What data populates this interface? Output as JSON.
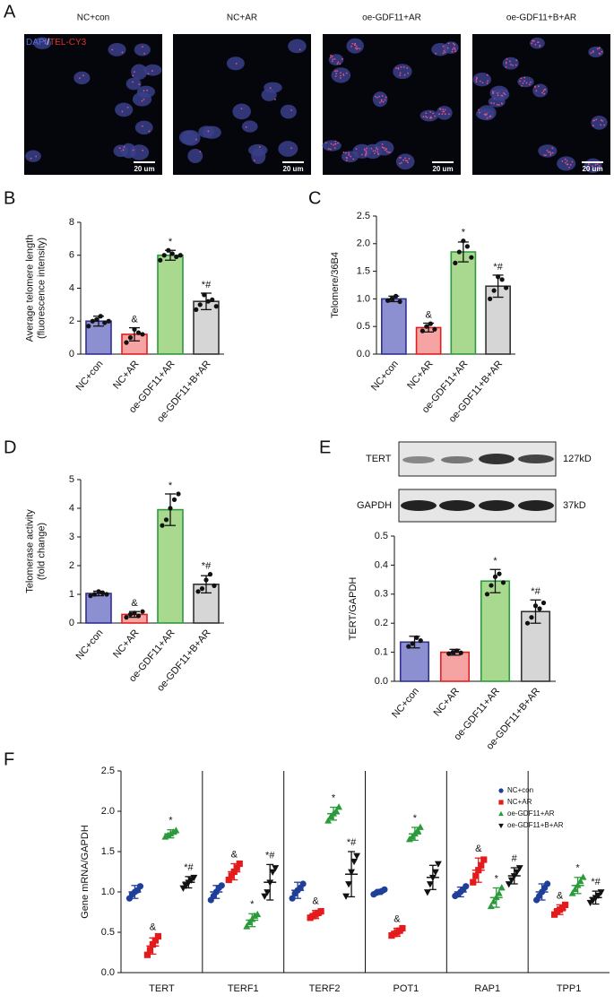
{
  "panel_a": {
    "label": "A",
    "titles": [
      "NC+con",
      "NC+AR",
      "oe-GDF11+AR",
      "oe-GDF11+B+AR"
    ],
    "channels": [
      "DAPI",
      "/",
      "TEL-CY3"
    ],
    "scale_bar": "20 um"
  },
  "blot": {
    "rows": [
      "TERT",
      "GAPDH"
    ],
    "sizes": [
      "127kD",
      "37kD"
    ]
  },
  "chart_data": [
    {
      "type": "bar",
      "panel": "B",
      "y_label": [
        "Average telomere length",
        "(fluorescence intensity)"
      ],
      "categories": [
        "NC+con",
        "NC+AR",
        "oe-GDF11+AR",
        "oe-GDF11+B+AR"
      ],
      "values": [
        2.0,
        1.2,
        6.0,
        3.2
      ],
      "errors": [
        0.3,
        0.4,
        0.3,
        0.5
      ],
      "points": [
        [
          1.7,
          2.0,
          2.1,
          2.3,
          1.9,
          2.0
        ],
        [
          0.7,
          1.0,
          1.5,
          1.3,
          1.2
        ],
        [
          5.7,
          6.0,
          6.3,
          6.1,
          5.9,
          6.0
        ],
        [
          2.7,
          3.0,
          3.6,
          3.2,
          3.3,
          2.9
        ]
      ],
      "annotations": [
        null,
        "&",
        "*",
        "*#"
      ],
      "colors": [
        "#8c8fd0",
        "#f5a3a3",
        "#a9d98f",
        "#d6d6d6"
      ],
      "edge_colors": [
        "#2e3192",
        "#e02020",
        "#2e9a40",
        "#333333"
      ],
      "point_color": "#111111",
      "ylim": [
        0,
        8
      ],
      "yticks": [
        0,
        2,
        4,
        6,
        8
      ]
    },
    {
      "type": "bar",
      "panel": "C",
      "y_label": [
        "Telomere/36B4"
      ],
      "categories": [
        "NC+con",
        "NC+AR",
        "oe-GDF11+AR",
        "oe-GDF11+B+AR"
      ],
      "values": [
        1.0,
        0.48,
        1.85,
        1.23
      ],
      "errors": [
        0.05,
        0.08,
        0.18,
        0.2
      ],
      "points": [
        [
          0.97,
          1.0,
          1.05,
          0.95
        ],
        [
          0.42,
          0.5,
          0.55,
          0.45
        ],
        [
          1.65,
          1.85,
          2.05,
          1.95,
          1.75
        ],
        [
          1.0,
          1.15,
          1.4,
          1.35,
          1.2
        ]
      ],
      "annotations": [
        null,
        "&",
        "*",
        "*#"
      ],
      "colors": [
        "#8c8fd0",
        "#f5a3a3",
        "#a9d98f",
        "#d6d6d6"
      ],
      "edge_colors": [
        "#2e3192",
        "#e02020",
        "#2e9a40",
        "#333333"
      ],
      "point_color": "#111111",
      "ylim": [
        0,
        2.5
      ],
      "yticks": [
        {
          "value": 0,
          "label": "0.0"
        },
        0.5,
        {
          "value": 1,
          "label": "1.0"
        },
        1.5,
        {
          "value": 2,
          "label": "2.0"
        },
        2.5
      ]
    },
    {
      "type": "bar",
      "panel": "D",
      "y_label": [
        "Telomerase activity",
        "(fold change)"
      ],
      "categories": [
        "NC+con",
        "NC+AR",
        "oe-GDF11+AR",
        "oe-GDF11+B+AR"
      ],
      "values": [
        1.03,
        0.3,
        3.95,
        1.35
      ],
      "errors": [
        0.08,
        0.1,
        0.55,
        0.3
      ],
      "points": [
        [
          0.95,
          1.0,
          1.1,
          1.05,
          1.0
        ],
        [
          0.2,
          0.3,
          0.35,
          0.25,
          0.4
        ],
        [
          3.4,
          3.6,
          4.0,
          4.3,
          4.5
        ],
        [
          1.1,
          1.2,
          1.5,
          1.7,
          1.3
        ]
      ],
      "annotations": [
        null,
        "&",
        "*",
        "*#"
      ],
      "colors": [
        "#8c8fd0",
        "#f5a3a3",
        "#a9d98f",
        "#d6d6d6"
      ],
      "edge_colors": [
        "#2e3192",
        "#e02020",
        "#2e9a40",
        "#333333"
      ],
      "point_color": "#111111",
      "ylim": [
        0,
        5
      ],
      "yticks": [
        0,
        1,
        2,
        3,
        4,
        5
      ]
    },
    {
      "type": "bar",
      "panel": "E",
      "y_label": [
        "TERT/GAPDH"
      ],
      "categories": [
        "NC+con",
        "NC+AR",
        "oe-GDF11+AR",
        "oe-GDF11+B+AR"
      ],
      "values": [
        0.135,
        0.1,
        0.345,
        0.24
      ],
      "errors": [
        0.02,
        0.01,
        0.04,
        0.04
      ],
      "points": [
        [
          0.12,
          0.13,
          0.15,
          0.14
        ],
        [
          0.095,
          0.1,
          0.105,
          0.098
        ],
        [
          0.3,
          0.33,
          0.36,
          0.37,
          0.34
        ],
        [
          0.2,
          0.22,
          0.26,
          0.25,
          0.27
        ]
      ],
      "annotations": [
        null,
        null,
        "*",
        "*#"
      ],
      "colors": [
        "#8c8fd0",
        "#f5a3a3",
        "#a9d98f",
        "#d6d6d6"
      ],
      "edge_colors": [
        "#2e3192",
        "#e02020",
        "#2e9a40",
        "#333333"
      ],
      "point_color": "#111111",
      "ylim": [
        0,
        0.5
      ],
      "yticks": [
        {
          "value": 0,
          "label": "0.0"
        },
        0.1,
        0.2,
        0.3,
        0.4,
        0.5
      ]
    },
    {
      "type": "dotplot",
      "panel": "F",
      "y_label": [
        "Gene mRNA/GAPDH"
      ],
      "categories": [
        "TERT",
        "TERF1",
        "TERF2",
        "POT1",
        "RAP1",
        "TPP1"
      ],
      "ylim": [
        0,
        2.5
      ],
      "yticks": [
        {
          "value": 0,
          "label": "0.0"
        },
        0.5,
        {
          "value": 1,
          "label": "1.0"
        },
        1.5,
        {
          "value": 2,
          "label": "2.0"
        },
        2.5
      ],
      "series": [
        {
          "name": "NC+con",
          "color": "#1f3f99",
          "marker": "circle",
          "values": [
            1.0,
            1.0,
            1.02,
            1.0,
            1.0,
            1.0
          ],
          "errors": [
            0.08,
            0.08,
            0.1,
            0.03,
            0.06,
            0.1
          ],
          "points": [
            [
              0.92,
              0.97,
              1.0,
              1.02,
              1.07
            ],
            [
              0.9,
              0.95,
              1.0,
              1.05,
              1.08
            ],
            [
              0.92,
              0.98,
              1.02,
              1.05,
              1.1
            ],
            [
              0.97,
              0.99,
              1.0,
              1.01,
              1.03
            ],
            [
              0.95,
              0.97,
              1.0,
              1.03,
              1.07
            ],
            [
              0.9,
              0.95,
              1.0,
              1.05,
              1.1
            ]
          ],
          "annotations": [
            null,
            null,
            null,
            null,
            null,
            null
          ]
        },
        {
          "name": "NC+AR",
          "color": "#e41a1c",
          "marker": "square",
          "values": [
            0.33,
            1.25,
            0.72,
            0.5,
            1.27,
            0.78
          ],
          "errors": [
            0.1,
            0.1,
            0.05,
            0.05,
            0.15,
            0.06
          ],
          "points": [
            [
              0.22,
              0.28,
              0.35,
              0.4,
              0.45
            ],
            [
              1.15,
              1.2,
              1.25,
              1.3,
              1.35
            ],
            [
              0.68,
              0.7,
              0.72,
              0.74,
              0.76
            ],
            [
              0.46,
              0.48,
              0.5,
              0.52,
              0.55
            ],
            [
              1.12,
              1.2,
              1.27,
              1.33,
              1.4
            ],
            [
              0.72,
              0.76,
              0.78,
              0.8,
              0.84
            ]
          ],
          "annotations": [
            "&",
            "&",
            "&",
            "&",
            "&",
            "&"
          ]
        },
        {
          "name": "oe-GDF11+AR",
          "color": "#2a9a3a",
          "marker": "triangle-up",
          "values": [
            1.72,
            0.65,
            1.97,
            1.72,
            0.93,
            1.08
          ],
          "errors": [
            0.05,
            0.08,
            0.08,
            0.08,
            0.12,
            0.1
          ],
          "points": [
            [
              1.68,
              1.7,
              1.72,
              1.74,
              1.76
            ],
            [
              0.57,
              0.62,
              0.66,
              0.7,
              0.72
            ],
            [
              1.88,
              1.93,
              1.97,
              2.0,
              2.05
            ],
            [
              1.65,
              1.68,
              1.72,
              1.76,
              1.8
            ],
            [
              0.82,
              0.88,
              0.93,
              0.98,
              1.05
            ],
            [
              0.98,
              1.03,
              1.08,
              1.13,
              1.18
            ]
          ],
          "annotations": [
            "*",
            "*",
            "*",
            "*",
            "*",
            "*"
          ]
        },
        {
          "name": "oe-GDF11+B+AR",
          "color": "#111111",
          "marker": "triangle-down",
          "values": [
            1.12,
            1.12,
            1.22,
            1.18,
            1.2,
            0.93
          ],
          "errors": [
            0.07,
            0.22,
            0.28,
            0.15,
            0.1,
            0.08
          ],
          "points": [
            [
              1.05,
              1.08,
              1.12,
              1.15,
              1.18
            ],
            [
              0.95,
              1.0,
              1.12,
              1.25,
              1.3
            ],
            [
              0.95,
              1.1,
              1.25,
              1.38,
              1.45
            ],
            [
              1.0,
              1.1,
              1.18,
              1.25,
              1.35
            ],
            [
              1.1,
              1.15,
              1.2,
              1.25,
              1.3
            ],
            [
              0.87,
              0.9,
              0.93,
              0.96,
              1.0
            ]
          ],
          "annotations": [
            "*#",
            "*#",
            "*#",
            null,
            "#",
            "*#"
          ]
        }
      ]
    }
  ]
}
